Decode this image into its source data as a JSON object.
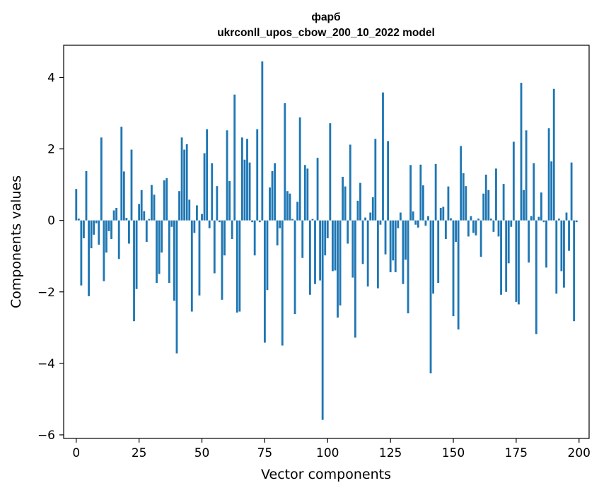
{
  "chart_data": {
    "type": "bar",
    "title": "фарб",
    "subtitle": "ukrconll_upos_cbow_200_10_2022 model",
    "xlabel": "Vector components",
    "ylabel": "Components values",
    "xlim": [
      -5,
      204
    ],
    "ylim": [
      -6.1,
      4.9
    ],
    "xticks": [
      0,
      25,
      50,
      75,
      100,
      125,
      150,
      175,
      200
    ],
    "yticks": [
      -6,
      -4,
      -2,
      0,
      2,
      4
    ],
    "ytick_labels": [
      "−6",
      "−4",
      "−2",
      "0",
      "2",
      "4"
    ],
    "bar_color": "#1f77b4",
    "grid": false,
    "legend": "none",
    "x": [
      0,
      1,
      2,
      3,
      4,
      5,
      6,
      7,
      8,
      9,
      10,
      11,
      12,
      13,
      14,
      15,
      16,
      17,
      18,
      19,
      20,
      21,
      22,
      23,
      24,
      25,
      26,
      27,
      28,
      29,
      30,
      31,
      32,
      33,
      34,
      35,
      36,
      37,
      38,
      39,
      40,
      41,
      42,
      43,
      44,
      45,
      46,
      47,
      48,
      49,
      50,
      51,
      52,
      53,
      54,
      55,
      56,
      57,
      58,
      59,
      60,
      61,
      62,
      63,
      64,
      65,
      66,
      67,
      68,
      69,
      70,
      71,
      72,
      73,
      74,
      75,
      76,
      77,
      78,
      79,
      80,
      81,
      82,
      83,
      84,
      85,
      86,
      87,
      88,
      89,
      90,
      91,
      92,
      93,
      94,
      95,
      96,
      97,
      98,
      99,
      100,
      101,
      102,
      103,
      104,
      105,
      106,
      107,
      108,
      109,
      110,
      111,
      112,
      113,
      114,
      115,
      116,
      117,
      118,
      119,
      120,
      121,
      122,
      123,
      124,
      125,
      126,
      127,
      128,
      129,
      130,
      131,
      132,
      133,
      134,
      135,
      136,
      137,
      138,
      139,
      140,
      141,
      142,
      143,
      144,
      145,
      146,
      147,
      148,
      149,
      150,
      151,
      152,
      153,
      154,
      155,
      156,
      157,
      158,
      159,
      160,
      161,
      162,
      163,
      164,
      165,
      166,
      167,
      168,
      169,
      170,
      171,
      172,
      173,
      174,
      175,
      176,
      177,
      178,
      179,
      180,
      181,
      182,
      183,
      184,
      185,
      186,
      187,
      188,
      189,
      190,
      191,
      192,
      193,
      194,
      195,
      196,
      197,
      198,
      199
    ],
    "values": [
      0.88,
      0.05,
      -1.82,
      -0.5,
      1.38,
      -2.12,
      -0.78,
      -0.4,
      -0.08,
      -0.68,
      2.32,
      -1.7,
      -0.9,
      -0.3,
      -0.52,
      0.28,
      0.35,
      -1.08,
      2.62,
      1.37,
      0.07,
      -0.65,
      1.98,
      -2.82,
      -1.92,
      0.46,
      0.85,
      0.26,
      -0.6,
      0.04,
      0.99,
      0.72,
      -1.75,
      -1.5,
      -0.9,
      1.12,
      1.18,
      -1.75,
      -0.18,
      -2.25,
      -3.72,
      0.82,
      2.32,
      1.98,
      2.13,
      0.58,
      -2.55,
      -0.35,
      0.42,
      -2.1,
      0.18,
      1.88,
      2.55,
      -0.22,
      1.6,
      -1.48,
      0.96,
      -0.05,
      -2.22,
      -0.98,
      2.52,
      1.1,
      -0.52,
      3.52,
      -2.58,
      -2.55,
      2.32,
      1.7,
      2.28,
      1.62,
      -0.05,
      -0.98,
      2.55,
      -0.05,
      4.45,
      -3.42,
      -1.95,
      0.92,
      1.38,
      1.6,
      -0.7,
      -0.22,
      -3.5,
      3.28,
      0.82,
      0.75,
      0.04,
      -2.62,
      0.52,
      2.88,
      -1.05,
      1.55,
      1.45,
      -2.08,
      0.04,
      -1.78,
      1.75,
      -1.68,
      -5.58,
      -0.98,
      -0.5,
      2.72,
      -1.42,
      -1.4,
      -2.72,
      -2.38,
      1.22,
      0.95,
      -0.65,
      2.12,
      -1.6,
      -3.28,
      0.55,
      1.05,
      -1.22,
      0.08,
      -1.85,
      0.22,
      0.65,
      2.28,
      -1.9,
      -0.12,
      3.58,
      -0.95,
      2.22,
      -1.45,
      -1.12,
      -1.45,
      -0.22,
      0.22,
      -1.78,
      -1.1,
      -2.6,
      1.55,
      0.25,
      -0.12,
      -0.2,
      1.56,
      0.98,
      -0.15,
      0.12,
      -4.28,
      -2.05,
      1.58,
      -1.75,
      0.35,
      0.38,
      -0.52,
      0.95,
      0.06,
      -2.68,
      -0.6,
      -3.05,
      2.08,
      1.32,
      0.96,
      -0.45,
      0.12,
      -0.35,
      -0.42,
      0.05,
      -1.02,
      0.75,
      1.28,
      0.85,
      0.05,
      -0.32,
      1.45,
      -0.45,
      -2.08,
      1.02,
      -2.0,
      -1.2,
      -0.18,
      2.2,
      -2.28,
      -2.35,
      3.85,
      0.85,
      2.52,
      -1.18,
      0.12,
      1.6,
      -3.18,
      0.1,
      0.78,
      -0.05,
      -1.32,
      2.58,
      1.65,
      3.68,
      -2.05,
      0.05,
      -1.42,
      -1.88,
      0.22,
      -0.85,
      1.62,
      -2.82,
      -0.05
    ]
  }
}
